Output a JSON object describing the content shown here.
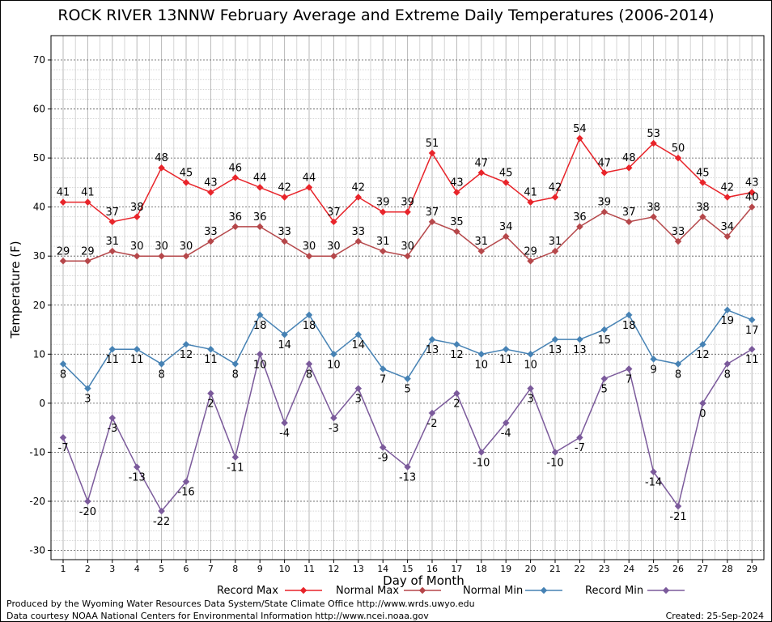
{
  "chart_data": {
    "type": "line",
    "title": "ROCK RIVER 13NNW February Average and Extreme Daily Temperatures (2006-2014)",
    "xlabel": "Day of Month",
    "ylabel": "Temperature (F)",
    "ylim": [
      -30,
      70
    ],
    "yticks": [
      -30,
      -20,
      -10,
      0,
      10,
      20,
      30,
      40,
      50,
      60,
      70
    ],
    "x": [
      1,
      2,
      3,
      4,
      5,
      6,
      7,
      8,
      9,
      10,
      11,
      12,
      13,
      14,
      15,
      16,
      17,
      18,
      19,
      20,
      21,
      22,
      23,
      24,
      25,
      26,
      27,
      28,
      29
    ],
    "grid": true,
    "legend_position": "bottom",
    "series": [
      {
        "name": "Record Max",
        "color": "#e8242a",
        "values": [
          41,
          41,
          37,
          38,
          48,
          45,
          43,
          46,
          44,
          42,
          44,
          37,
          42,
          39,
          39,
          51,
          43,
          47,
          45,
          41,
          42,
          54,
          47,
          48,
          53,
          50,
          45,
          42,
          43
        ]
      },
      {
        "name": "Normal Max",
        "color": "#b5474a",
        "values": [
          29,
          29,
          31,
          30,
          30,
          30,
          33,
          36,
          36,
          33,
          30,
          30,
          33,
          31,
          30,
          37,
          35,
          31,
          34,
          29,
          31,
          36,
          39,
          37,
          38,
          33,
          38,
          34,
          40
        ]
      },
      {
        "name": "Normal Min",
        "color": "#4682b4",
        "values": [
          8,
          3,
          11,
          11,
          8,
          12,
          11,
          8,
          18,
          14,
          18,
          10,
          14,
          7,
          5,
          13,
          12,
          10,
          11,
          10,
          13,
          13,
          15,
          18,
          9,
          8,
          12,
          19,
          17
        ]
      },
      {
        "name": "Record Min",
        "color": "#7b5a9b",
        "values": [
          -7,
          -20,
          -3,
          -13,
          -22,
          -16,
          2,
          -11,
          10,
          -4,
          8,
          -3,
          3,
          -9,
          -13,
          -2,
          2,
          -10,
          -4,
          3,
          -10,
          -7,
          5,
          7,
          -14,
          -21,
          0,
          8,
          11
        ]
      }
    ]
  },
  "footer": {
    "credit_line1": "Produced by the Wyoming Water Resources Data System/State Climate Office http://www.wrds.uwyo.edu",
    "credit_line2": "Data courtesy NOAA National Centers for Environmental Information http://www.ncei.noaa.gov",
    "created": "Created:  25-Sep-2024"
  }
}
